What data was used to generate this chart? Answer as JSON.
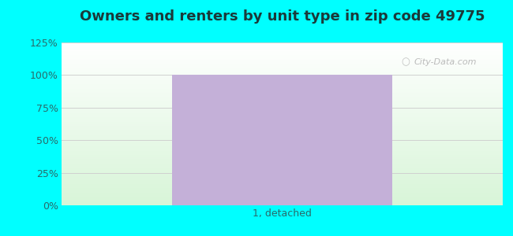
{
  "title": "Owners and renters by unit type in zip code 49775",
  "title_fontsize": 13,
  "categories": [
    "1, detached"
  ],
  "bar_values": [
    100
  ],
  "bar_color": "#c4b0d8",
  "bar_width": 0.5,
  "ylim": [
    0,
    125
  ],
  "yticks": [
    0,
    25,
    50,
    75,
    100,
    125
  ],
  "ytick_labels": [
    "0%",
    "25%",
    "50%",
    "75%",
    "100%",
    "125%"
  ],
  "tick_fontsize": 9,
  "watermark": "City-Data.com",
  "bg_color": "#00ffff",
  "plot_top_color": "#ffffff",
  "plot_bottom_color": "#d8f5d8",
  "tick_color": "#2a6a6a",
  "grid_color": "#d0d0d0",
  "title_color": "#1a3a3a"
}
